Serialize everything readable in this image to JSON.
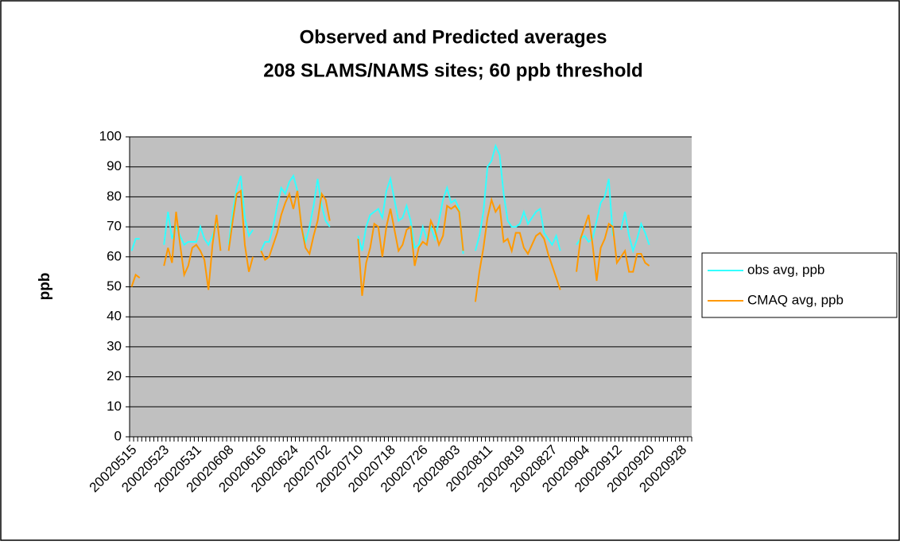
{
  "chart_data": {
    "type": "line",
    "title": [
      "Observed and Predicted averages",
      "208 SLAMS/NAMS sites; 60 ppb threshold"
    ],
    "y_label": "ppb",
    "categories": [
      "20020515",
      null,
      null,
      null,
      null,
      null,
      null,
      null,
      "20020523",
      null,
      null,
      null,
      null,
      null,
      null,
      null,
      "20020531",
      null,
      null,
      null,
      null,
      null,
      null,
      null,
      "20020608",
      null,
      null,
      null,
      null,
      null,
      null,
      null,
      "20020616",
      null,
      null,
      null,
      null,
      null,
      null,
      null,
      "20020624",
      null,
      null,
      null,
      null,
      null,
      null,
      null,
      "20020702",
      null,
      null,
      null,
      null,
      null,
      null,
      null,
      "20020710",
      null,
      null,
      null,
      null,
      null,
      null,
      null,
      "20020718",
      null,
      null,
      null,
      null,
      null,
      null,
      null,
      "20020726",
      null,
      null,
      null,
      null,
      null,
      null,
      null,
      "20020803",
      null,
      null,
      null,
      null,
      null,
      null,
      null,
      "20020811",
      null,
      null,
      null,
      null,
      null,
      null,
      null,
      "20020819",
      null,
      null,
      null,
      null,
      null,
      null,
      null,
      "20020827",
      null,
      null,
      null,
      null,
      null,
      null,
      null,
      "20020904",
      null,
      null,
      null,
      null,
      null,
      null,
      null,
      "20020912",
      null,
      null,
      null,
      null,
      null,
      null,
      null,
      "20020920",
      null,
      null,
      null,
      null,
      null,
      null,
      null,
      "20020928",
      null,
      null
    ],
    "series": [
      {
        "name": "obs avg, ppb",
        "color": "#33ffff",
        "values": [
          62,
          66,
          66,
          null,
          null,
          null,
          null,
          null,
          64,
          75,
          66,
          70,
          67,
          64,
          65,
          65,
          65,
          70,
          66,
          64,
          67,
          71,
          null,
          null,
          64,
          75,
          83,
          87,
          73,
          67,
          69,
          null,
          62,
          65,
          65,
          70,
          77,
          83,
          81,
          85,
          87,
          82,
          70,
          65,
          70,
          77,
          86,
          77,
          72,
          70,
          null,
          null,
          null,
          null,
          null,
          null,
          67,
          62,
          70,
          74,
          75,
          76,
          73,
          82,
          86,
          79,
          72,
          73,
          77,
          72,
          63,
          64,
          70,
          66,
          70,
          66,
          72,
          79,
          83,
          78,
          79,
          76,
          61,
          null,
          null,
          62,
          67,
          75,
          90,
          92,
          97,
          94,
          81,
          72,
          70,
          70,
          71,
          75,
          71,
          73,
          75,
          76,
          68,
          66,
          64,
          67,
          62,
          null,
          null,
          null,
          64,
          66,
          67,
          65,
          66,
          72,
          78,
          80,
          86,
          67,
          null,
          69,
          75,
          67,
          62,
          66,
          71,
          68,
          64,
          null,
          null,
          null,
          null,
          null,
          null,
          null,
          null,
          null,
          null
        ]
      },
      {
        "name": "CMAQ avg, ppb",
        "color": "#ff9900",
        "values": [
          50,
          54,
          53,
          null,
          null,
          null,
          null,
          null,
          57,
          63,
          58,
          75,
          64,
          54,
          57,
          63,
          64,
          62,
          59,
          49,
          64,
          74,
          62,
          null,
          62,
          72,
          81,
          82,
          64,
          55,
          60,
          null,
          62,
          59,
          60,
          64,
          68,
          74,
          78,
          81,
          76,
          82,
          70,
          63,
          61,
          67,
          72,
          81,
          79,
          72,
          null,
          null,
          null,
          null,
          null,
          null,
          66,
          47,
          58,
          63,
          71,
          70,
          60,
          70,
          76,
          69,
          62,
          64,
          69,
          70,
          57,
          63,
          65,
          64,
          72,
          69,
          64,
          67,
          77,
          76,
          77,
          75,
          62,
          null,
          null,
          45,
          55,
          63,
          73,
          79,
          75,
          77,
          65,
          66,
          62,
          68,
          68,
          63,
          61,
          64,
          67,
          68,
          66,
          61,
          57,
          53,
          49,
          null,
          null,
          null,
          55,
          66,
          70,
          74,
          64,
          52,
          63,
          66,
          71,
          70,
          58,
          60,
          62,
          55,
          55,
          61,
          61,
          58,
          57,
          null,
          null,
          null,
          null,
          null,
          null,
          null,
          null,
          null,
          null
        ]
      }
    ],
    "ylim": [
      0,
      100
    ],
    "yticks": [
      0,
      10,
      20,
      30,
      40,
      50,
      60,
      70,
      80,
      90,
      100
    ],
    "grid": true,
    "legend": "right"
  }
}
